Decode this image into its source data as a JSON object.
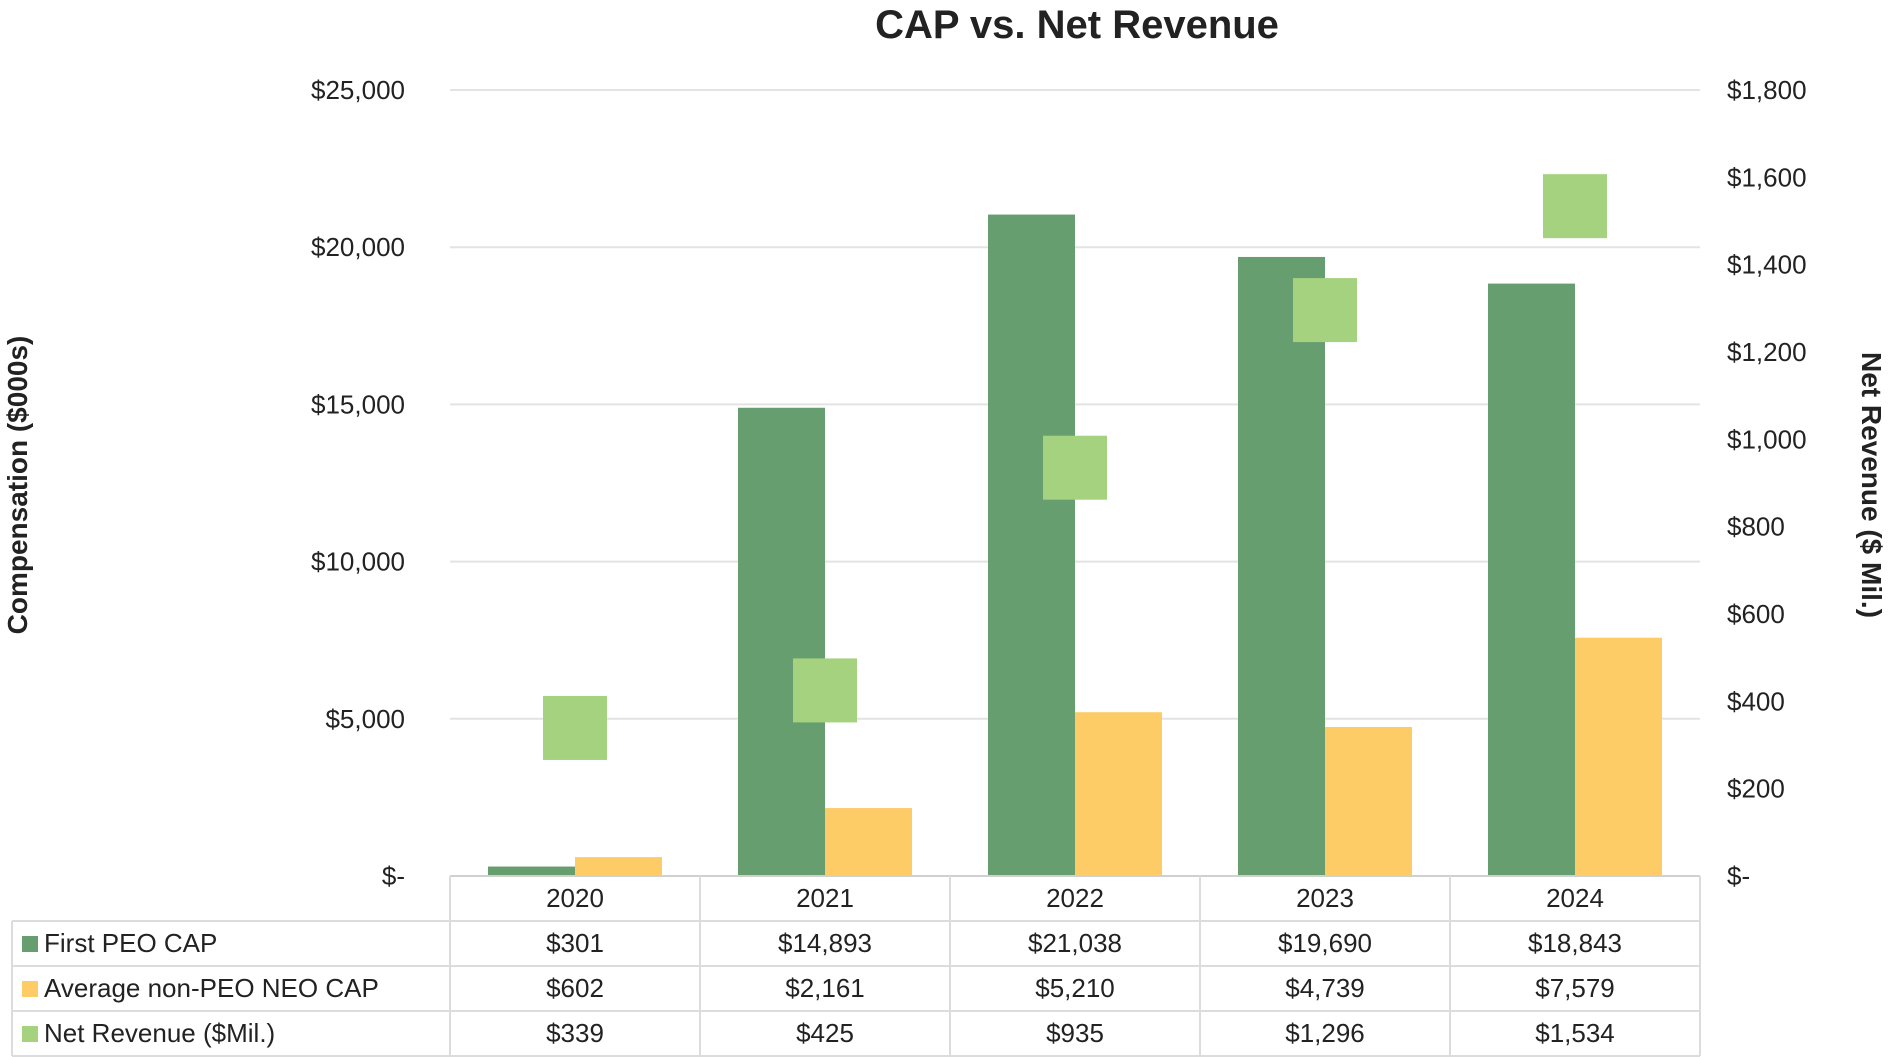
{
  "chart_data": {
    "type": "bar",
    "title": "CAP vs. Net Revenue",
    "categories": [
      "2020",
      "2021",
      "2022",
      "2023",
      "2024"
    ],
    "ylabel": "Compensation ($000s)",
    "y2label": "Net Revenue ($ Mil.)",
    "ylim": [
      0,
      25000
    ],
    "y2lim": [
      0,
      1800
    ],
    "yticks": [
      "$-",
      "$5,000",
      "$10,000",
      "$15,000",
      "$20,000",
      "$25,000"
    ],
    "y2ticks": [
      "$-",
      "$200",
      "$400",
      "$600",
      "$800",
      "$1,000",
      "$1,200",
      "$1,400",
      "$1,600",
      "$1,800"
    ],
    "grid": true,
    "legend": "data-table",
    "series": [
      {
        "name": "First PEO CAP",
        "kind": "bar",
        "axis": "left",
        "color": "#669e6f",
        "values": [
          301,
          14893,
          21038,
          19690,
          18843
        ],
        "labels": [
          "$301",
          "$14,893",
          "$21,038",
          "$19,690",
          "$18,843"
        ]
      },
      {
        "name": "Average non-PEO NEO CAP",
        "kind": "bar",
        "axis": "left",
        "color": "#fdcc67",
        "values": [
          602,
          2161,
          5210,
          4739,
          7579
        ],
        "labels": [
          "$602",
          "$2,161",
          "$5,210",
          "$4,739",
          "$7,579"
        ]
      },
      {
        "name": "Net Revenue ($Mil.)",
        "kind": "marker",
        "axis": "right",
        "color": "#a5d27e",
        "values": [
          339,
          425,
          935,
          1296,
          1534
        ],
        "labels": [
          "$339",
          "$425",
          "$935",
          "$1,296",
          "$1,534"
        ]
      }
    ]
  }
}
